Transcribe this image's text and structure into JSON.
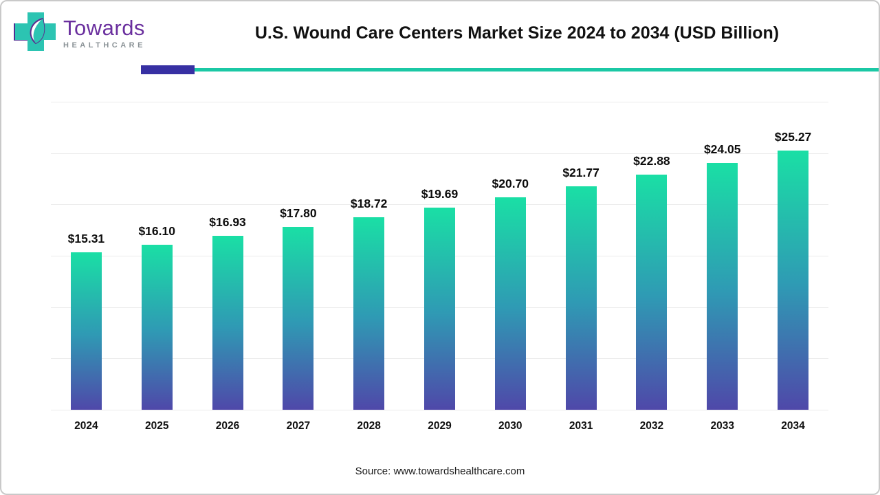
{
  "header": {
    "title": "U.S. Wound Care Centers Market Size 2024 to 2034 (USD Billion)",
    "logo": {
      "brand": "Towards",
      "sub": "HEALTHCARE",
      "icon": "towards-healthcare-cross-leaf-icon"
    }
  },
  "chart_data": {
    "type": "bar",
    "title": "U.S. Wound Care Centers Market Size 2024 to 2034 (USD Billion)",
    "categories": [
      "2024",
      "2025",
      "2026",
      "2027",
      "2028",
      "2029",
      "2030",
      "2031",
      "2032",
      "2033",
      "2034"
    ],
    "values": [
      15.31,
      16.1,
      16.93,
      17.8,
      18.72,
      19.69,
      20.7,
      21.77,
      22.88,
      24.05,
      25.27
    ],
    "labels": [
      "$15.31",
      "$16.10",
      "$16.93",
      "$17.80",
      "$18.72",
      "$19.69",
      "$20.70",
      "$21.77",
      "$22.88",
      "$24.05",
      "$25.27"
    ],
    "xlabel": "",
    "ylabel": "",
    "ylim": [
      0,
      30
    ],
    "gridline_count": 6,
    "grid": true,
    "legend": "none",
    "bar_gradient_top": "#1adfa5",
    "bar_gradient_mid": "#2f9ab4",
    "bar_gradient_bottom": "#4f48a9"
  },
  "footer": {
    "source": "Source: www.towardshealthcare.com"
  },
  "colors": {
    "accent_purple": "#3730a3",
    "accent_teal": "#1bc8a5"
  }
}
